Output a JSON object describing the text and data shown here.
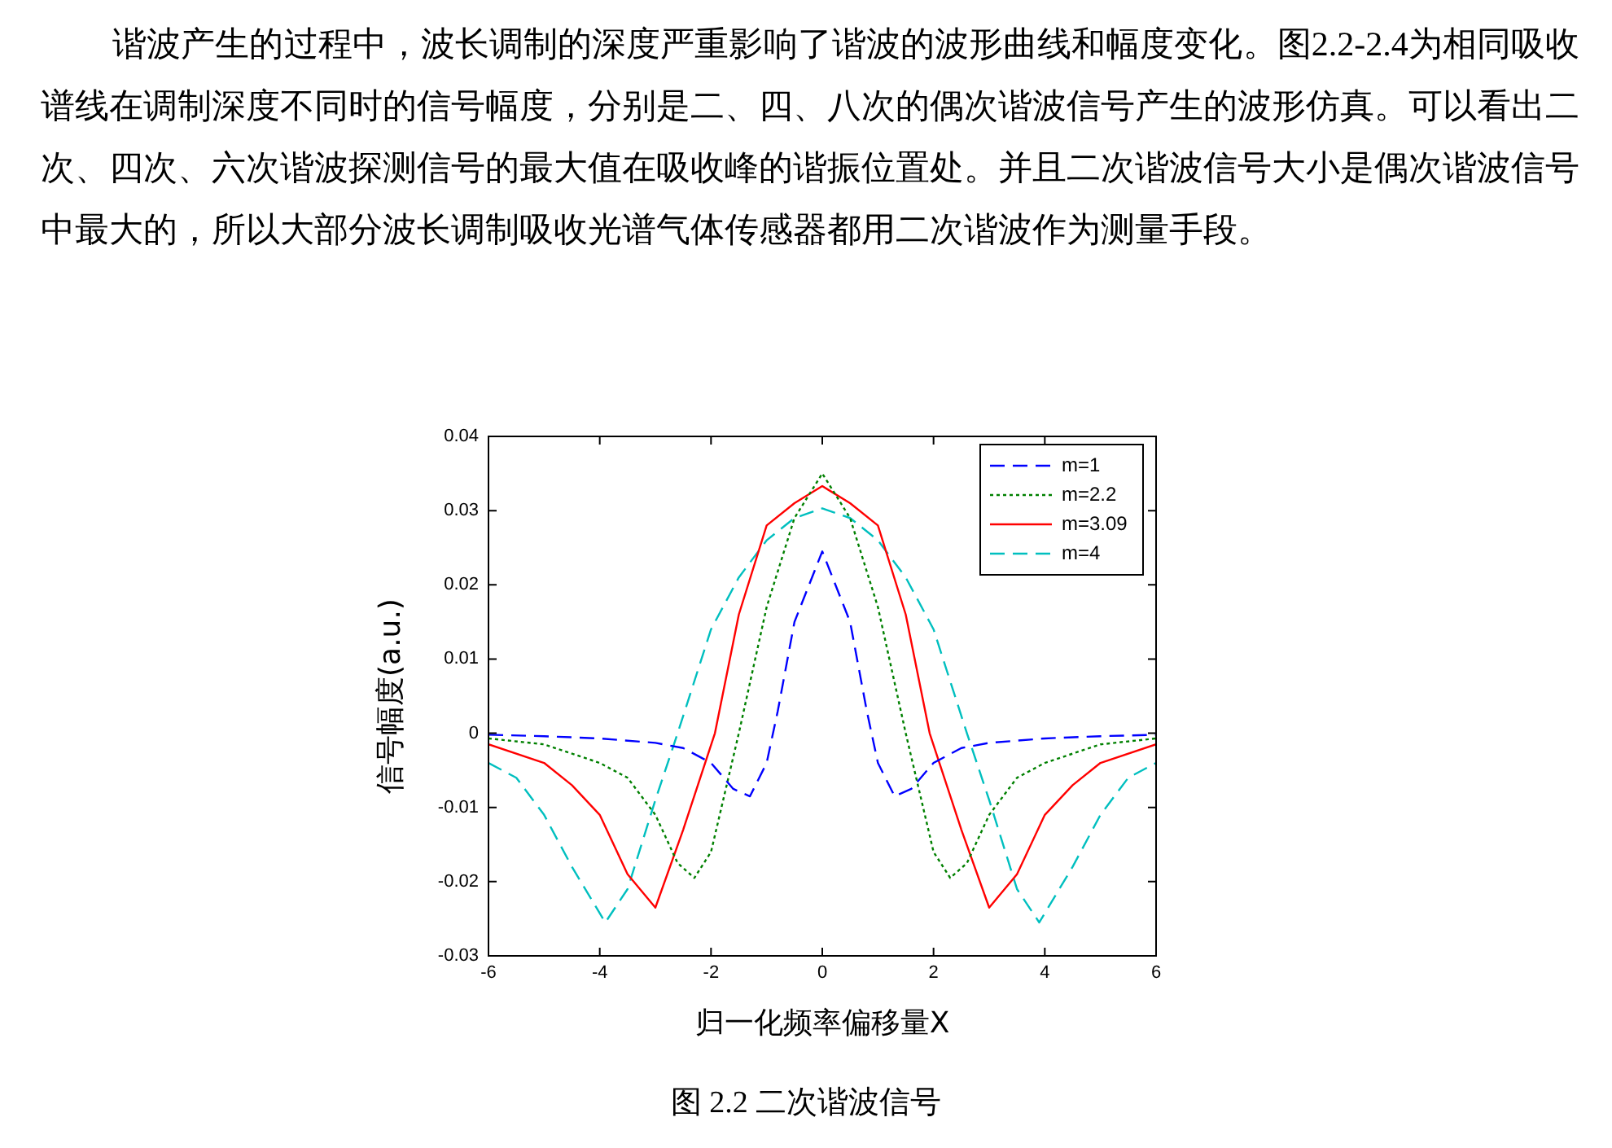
{
  "chart_data": {
    "type": "line",
    "xlabel": "归一化频率偏移量X",
    "ylabel": "信号幅度(a.u.)",
    "annotations": [
      "谐波产生的过程中，波长调制的深度严重影响了谐波的波形曲线和幅度变化。图2.2-2.4为相同吸收谱线在调制深度不同时的信号幅度，分别是二、四、八次的偶次谐波信号产生的波形仿真。可以看出二次、四次、六次谐波探测信号的最大值在吸收峰的谐振位置处。并且二次谐波信号大小是偶次谐波信号中最大的，所以大部分波长调制吸收光谱气体传感器都用二次谐波作为测量手段。",
      "图 2.2  二次谐波信号"
    ],
    "xlim": [
      -6,
      6
    ],
    "xticks": [
      -6,
      -4,
      -2,
      0,
      2,
      4,
      6
    ],
    "ylim": [
      -0.03,
      0.04
    ],
    "yticks": [
      -0.03,
      -0.02,
      -0.01,
      0,
      0.01,
      0.02,
      0.03,
      0.04
    ],
    "grid": false,
    "legend": "top right",
    "marker": "none",
    "series": [
      {
        "name": "m=1",
        "color": "#0000ff",
        "line_style": "dashed",
        "x": [
          -6,
          -5,
          -4,
          -3,
          -2.5,
          -2,
          -1.6,
          -1.3,
          -1,
          -0.8,
          -0.5,
          0,
          0.5,
          0.8,
          1,
          1.3,
          1.6,
          2,
          2.5,
          3,
          4,
          5,
          6
        ],
        "values": [
          -0.0002,
          -0.0004,
          -0.0007,
          -0.0013,
          -0.002,
          -0.004,
          -0.0075,
          -0.0085,
          -0.004,
          0.003,
          0.015,
          0.0245,
          0.015,
          0.003,
          -0.004,
          -0.0085,
          -0.0075,
          -0.004,
          -0.002,
          -0.0013,
          -0.0007,
          -0.0004,
          -0.0002
        ]
      },
      {
        "name": "m=2.2",
        "color": "#008000",
        "line_style": "dotted",
        "x": [
          -6,
          -5,
          -4,
          -3.5,
          -3,
          -2.6,
          -2.3,
          -2,
          -1.5,
          -1,
          -0.5,
          0,
          0.5,
          1,
          1.5,
          2,
          2.3,
          2.6,
          3,
          3.5,
          4,
          5,
          6
        ],
        "values": [
          -0.0007,
          -0.0015,
          -0.004,
          -0.006,
          -0.011,
          -0.0175,
          -0.0195,
          -0.016,
          0,
          0.017,
          0.029,
          0.035,
          0.029,
          0.017,
          0,
          -0.016,
          -0.0195,
          -0.0175,
          -0.011,
          -0.006,
          -0.004,
          -0.0015,
          -0.0007
        ]
      },
      {
        "name": "m=3.09",
        "color": "#ff0000",
        "line_style": "solid",
        "x": [
          -6,
          -5,
          -4.5,
          -4,
          -3.5,
          -3,
          -2.5,
          -1.93,
          -1.5,
          -1,
          -0.5,
          0,
          0.5,
          1,
          1.5,
          1.93,
          2.5,
          3,
          3.5,
          4,
          4.5,
          5,
          6
        ],
        "values": [
          -0.0015,
          -0.004,
          -0.007,
          -0.011,
          -0.019,
          -0.0235,
          -0.013,
          0,
          0.016,
          0.028,
          0.031,
          0.0333,
          0.031,
          0.028,
          0.016,
          0,
          -0.013,
          -0.0235,
          -0.019,
          -0.011,
          -0.007,
          -0.004,
          -0.0015
        ]
      },
      {
        "name": "m=4",
        "color": "#00bfbf",
        "line_style": "dashed",
        "x": [
          -6,
          -5.5,
          -5,
          -4.5,
          -3.9,
          -3.5,
          -3,
          -2.6,
          -2,
          -1.5,
          -1,
          -0.5,
          0,
          0.5,
          1,
          1.5,
          2,
          2.6,
          3,
          3.5,
          3.9,
          4.5,
          5,
          5.5,
          6
        ],
        "values": [
          -0.004,
          -0.006,
          -0.011,
          -0.018,
          -0.0255,
          -0.021,
          -0.009,
          0,
          0.014,
          0.021,
          0.026,
          0.029,
          0.0303,
          0.029,
          0.026,
          0.021,
          0.014,
          0,
          -0.009,
          -0.021,
          -0.0255,
          -0.018,
          -0.011,
          -0.006,
          -0.004
        ]
      }
    ]
  }
}
